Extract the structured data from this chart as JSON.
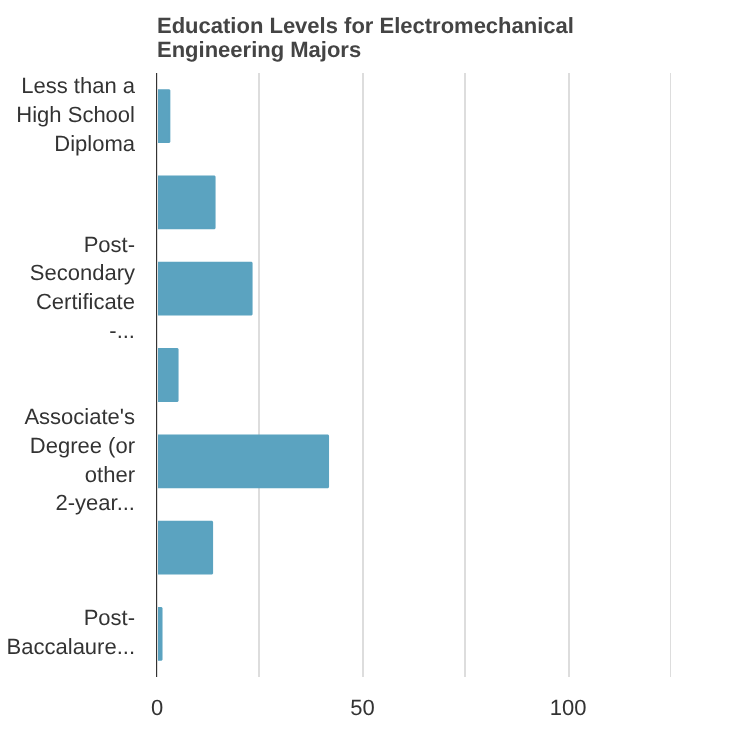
{
  "chart_data": {
    "type": "bar",
    "orientation": "horizontal",
    "title": "Education Levels for Electromechanical Engineering Majors",
    "categories": [
      "Less than a High School Diploma",
      null,
      "Post-Secondary Certificate -...",
      null,
      "Associate's Degree (or other 2-year...",
      null,
      "Post-Baccalaure..."
    ],
    "values": [
      3,
      14,
      23,
      5,
      41.6,
      13.4,
      1.1
    ],
    "color": "#5ba3c0",
    "xlim": [
      0,
      125
    ],
    "xticks": [
      0,
      {
        "value": 25,
        "label": null
      },
      50,
      {
        "value": 75,
        "label": null
      },
      100,
      {
        "value": 125,
        "label": null
      }
    ],
    "grid": "x"
  }
}
